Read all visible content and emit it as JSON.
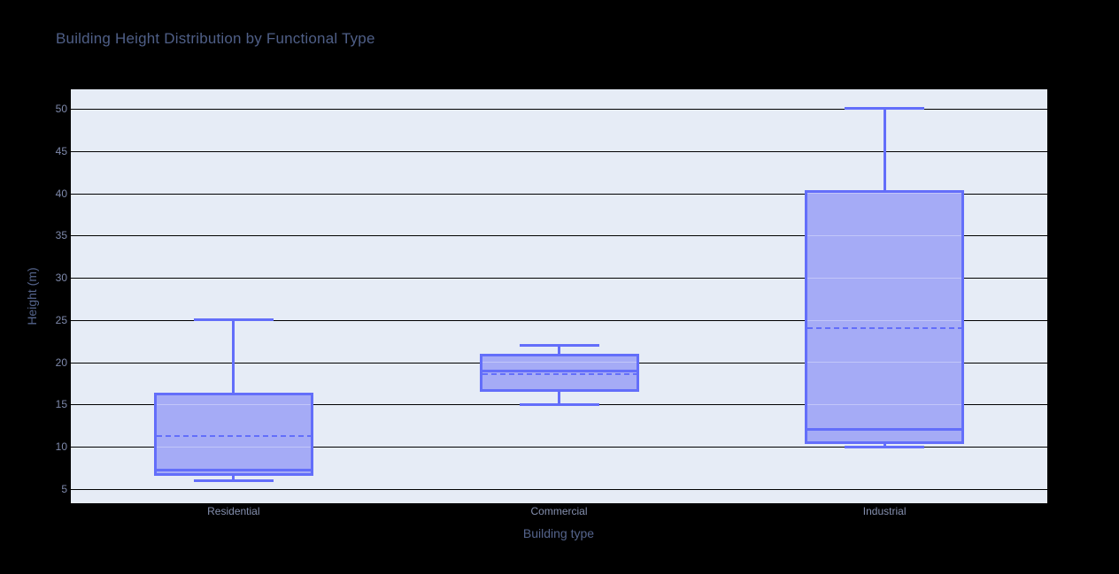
{
  "chart_data": {
    "type": "box",
    "title": "Building Height Distribution by Functional Type",
    "xlabel": "Building type",
    "ylabel": "Height (m)",
    "categories": [
      "Residential",
      "Commercial",
      "Industrial"
    ],
    "series": [
      {
        "name": "Residential",
        "min": 6,
        "q1": 6.5,
        "median": 7.2,
        "mean": 11.3,
        "q3": 16.4,
        "max": 25
      },
      {
        "name": "Commercial",
        "min": 15,
        "q1": 16.5,
        "median": 19,
        "mean": 18.6,
        "q3": 21,
        "max": 22
      },
      {
        "name": "Industrial",
        "min": 10,
        "q1": 10.3,
        "median": 12,
        "mean": 24,
        "q3": 40.4,
        "max": 50
      }
    ],
    "yticks": [
      5,
      10,
      15,
      20,
      25,
      30,
      35,
      40,
      45,
      50
    ],
    "ylim": [
      3.3,
      52.3
    ],
    "grid": true,
    "legend_position": "none",
    "mean_line_style": "dashed",
    "colors": {
      "page_bg": "#000000",
      "plot_bg": "#e6ecf6",
      "gridline": "#000000",
      "box_line": "#636efa",
      "box_fill": "#a5abf6",
      "title_text": "#4f5f87",
      "tick_text": "#7e89ab",
      "category_text": "#848fae",
      "axis_title_text": "#55648c"
    }
  }
}
